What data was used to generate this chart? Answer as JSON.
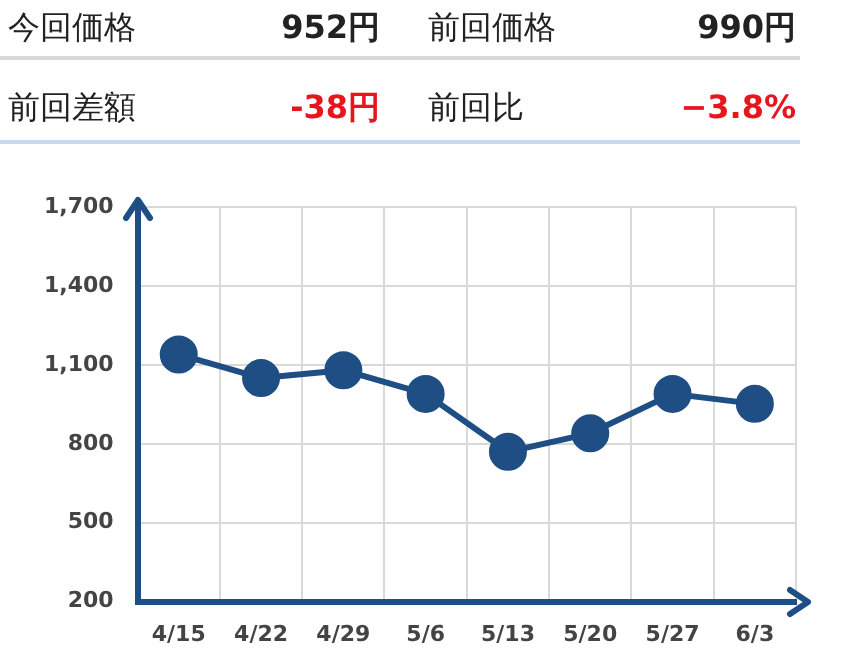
{
  "chart_data": [
    {
      "type": "other",
      "annotations": [
        "今回価格",
        "952円",
        "前回価格",
        "990円",
        "前回差額",
        "-38円",
        "前回比",
        "−3.8%"
      ]
    },
    {
      "type": "line",
      "categories": [
        "4/15",
        "4/22",
        "4/29",
        "5/6",
        "5/13",
        "5/20",
        "5/27",
        "6/3"
      ],
      "series": [
        {
          "color": "#1f4e85",
          "values": [
            1140,
            1050,
            1080,
            990,
            770,
            840,
            990,
            952
          ]
        }
      ],
      "ylim": [
        200,
        1700
      ],
      "yticks": [
        200,
        500,
        800,
        {
          "value": 1100,
          "label": "1,100"
        },
        {
          "value": 1400,
          "label": "1,400"
        },
        {
          "value": 1700,
          "label": "1,700"
        }
      ],
      "grid": true,
      "marker": "circle",
      "line_style": "solid",
      "legend": false
    }
  ]
}
